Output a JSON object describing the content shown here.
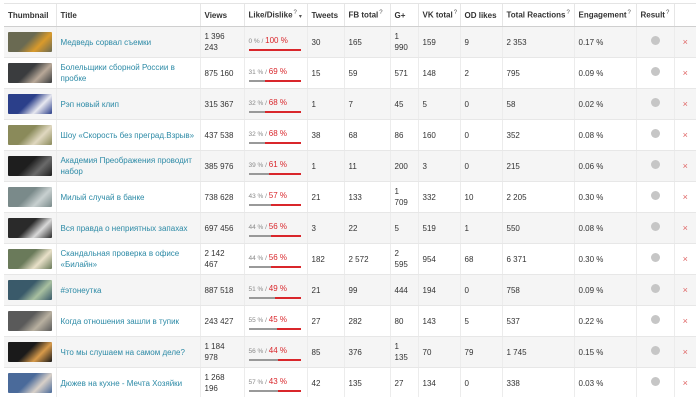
{
  "headers": {
    "thumbnail": "Thumbnail",
    "title": "Title",
    "views": "Views",
    "like_dislike": "Like/Dislike",
    "tweets": "Tweets",
    "fb_total": "FB total",
    "gplus": "G+",
    "vk_total": "VK total",
    "od_likes": "OD likes",
    "total_reactions": "Total Reactions",
    "engagement": "Engagement",
    "result": "Result",
    "help_mark": "?",
    "sort_caret": "▾"
  },
  "delete_glyph": "×",
  "rows": [
    {
      "thumb_color": "#6a6a52",
      "thumb_accent": "#d99a2b",
      "title": "Медведь сорвал съемки",
      "views": "1 396 243",
      "like": "0 %",
      "dislike": "100 %",
      "like_frac": 0.0,
      "tweets": "30",
      "fb": "165",
      "gplus": "1 990",
      "vk": "159",
      "od": "9",
      "reactions": "2 353",
      "engagement": "0.17 %"
    },
    {
      "thumb_color": "#3a3c3e",
      "thumb_accent": "#b8a898",
      "title": "Болельщики сборной России в пробке",
      "views": "875 160",
      "like": "31 %",
      "dislike": "69 %",
      "like_frac": 0.31,
      "tweets": "15",
      "fb": "59",
      "gplus": "571",
      "vk": "148",
      "od": "2",
      "reactions": "795",
      "engagement": "0.09 %"
    },
    {
      "thumb_color": "#2b3f8a",
      "thumb_accent": "#e8e8f0",
      "title": "Рэп новый клип",
      "views": "315 367",
      "like": "32 %",
      "dislike": "68 %",
      "like_frac": 0.32,
      "tweets": "1",
      "fb": "7",
      "gplus": "45",
      "vk": "5",
      "od": "0",
      "reactions": "58",
      "engagement": "0.02 %"
    },
    {
      "thumb_color": "#8a8a5a",
      "thumb_accent": "#e0d8c0",
      "title": "Шоу «Скорость без преград.Взрыв»",
      "views": "437 538",
      "like": "32 %",
      "dislike": "68 %",
      "like_frac": 0.32,
      "tweets": "38",
      "fb": "68",
      "gplus": "86",
      "vk": "160",
      "od": "0",
      "reactions": "352",
      "engagement": "0.08 %"
    },
    {
      "thumb_color": "#1e1e1e",
      "thumb_accent": "#6a6a6a",
      "title": "Академия Преображения проводит набор",
      "views": "385 976",
      "like": "39 %",
      "dislike": "61 %",
      "like_frac": 0.39,
      "tweets": "1",
      "fb": "11",
      "gplus": "200",
      "vk": "3",
      "od": "0",
      "reactions": "215",
      "engagement": "0.06 %"
    },
    {
      "thumb_color": "#7a8a8a",
      "thumb_accent": "#c8d0d0",
      "title": "Милый случай в банке",
      "views": "738 628",
      "like": "43 %",
      "dislike": "57 %",
      "like_frac": 0.43,
      "tweets": "21",
      "fb": "133",
      "gplus": "1 709",
      "vk": "332",
      "od": "10",
      "reactions": "2 205",
      "engagement": "0.30 %"
    },
    {
      "thumb_color": "#2a2a2a",
      "thumb_accent": "#d8d8d8",
      "title": "Вся правда о неприятных запахах",
      "views": "697 456",
      "like": "44 %",
      "dislike": "56 %",
      "like_frac": 0.44,
      "tweets": "3",
      "fb": "22",
      "gplus": "5",
      "vk": "519",
      "od": "1",
      "reactions": "550",
      "engagement": "0.08 %"
    },
    {
      "thumb_color": "#6a7a5a",
      "thumb_accent": "#e8e0c8",
      "title": "Скандальная проверка в офисе «Билайн»",
      "views": "2 142 467",
      "like": "44 %",
      "dislike": "56 %",
      "like_frac": 0.44,
      "tweets": "182",
      "fb": "2 572",
      "gplus": "2 595",
      "vk": "954",
      "od": "68",
      "reactions": "6 371",
      "engagement": "0.30 %"
    },
    {
      "thumb_color": "#3a5a6a",
      "thumb_accent": "#a8c0a0",
      "title": "#этонеутка",
      "views": "887 518",
      "like": "51 %",
      "dislike": "49 %",
      "like_frac": 0.51,
      "tweets": "21",
      "fb": "99",
      "gplus": "444",
      "vk": "194",
      "od": "0",
      "reactions": "758",
      "engagement": "0.09 %"
    },
    {
      "thumb_color": "#5a5a5a",
      "thumb_accent": "#b8b0a0",
      "title": "Когда отношения зашли в тупик",
      "views": "243 427",
      "like": "55 %",
      "dislike": "45 %",
      "like_frac": 0.55,
      "tweets": "27",
      "fb": "282",
      "gplus": "80",
      "vk": "143",
      "od": "5",
      "reactions": "537",
      "engagement": "0.22 %"
    },
    {
      "thumb_color": "#1a1a1a",
      "thumb_accent": "#d89a4a",
      "title": "Что мы слушаем на самом деле?",
      "views": "1 184 978",
      "like": "56 %",
      "dislike": "44 %",
      "like_frac": 0.56,
      "tweets": "85",
      "fb": "376",
      "gplus": "1 135",
      "vk": "70",
      "od": "79",
      "reactions": "1 745",
      "engagement": "0.15 %"
    },
    {
      "thumb_color": "#4a6a9a",
      "thumb_accent": "#d8d0c8",
      "title": "Дюжев на кухне - Мечта Хозяйки",
      "views": "1 268 196",
      "like": "57 %",
      "dislike": "43 %",
      "like_frac": 0.57,
      "tweets": "42",
      "fb": "135",
      "gplus": "27",
      "vk": "134",
      "od": "0",
      "reactions": "338",
      "engagement": "0.03 %"
    }
  ]
}
